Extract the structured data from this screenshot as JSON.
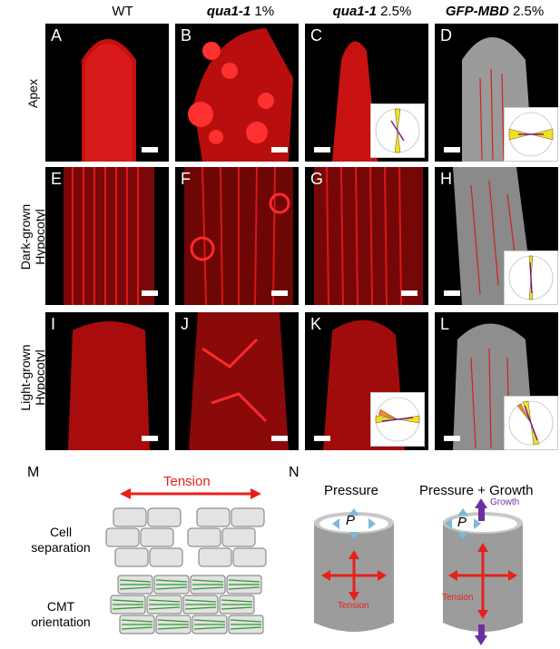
{
  "columns": [
    {
      "italic": "",
      "rest": "WT"
    },
    {
      "italic": "qua1-1",
      "rest": " 1%"
    },
    {
      "italic": "qua1-1",
      "rest": " 2.5%"
    },
    {
      "italic": "GFP-MBD",
      "rest": " 2.5%"
    }
  ],
  "rows": [
    {
      "line1": "Apex",
      "line2": ""
    },
    {
      "line1": "Dark-grown",
      "line2": "Hypocotyl"
    },
    {
      "line1": "Light-grown",
      "line2": "Hypocotyl"
    }
  ],
  "panels": [
    "A",
    "B",
    "C",
    "D",
    "E",
    "F",
    "G",
    "H",
    "I",
    "J",
    "K",
    "L"
  ],
  "schematic_m": {
    "label": "M",
    "tension": "Tension",
    "cell_separation_line1": "Cell",
    "cell_separation_line2": "separation",
    "cmt_line1": "CMT",
    "cmt_line2": "orientation"
  },
  "schematic_n": {
    "label": "N",
    "pressure_title": "Pressure",
    "pressure_growth_title": "Pressure + Growth",
    "p_symbol": "P",
    "tension_label": "Tension",
    "growth_label": "Growth"
  },
  "colors": {
    "fluor_red": "#e01010",
    "gfp_gray": "#bfbfbf",
    "arrow_red": "#e8201a",
    "arrow_blue": "#7fb8d8",
    "arrow_purple": "#6a2fa0",
    "microtubule_green": "#2e9a2e"
  }
}
